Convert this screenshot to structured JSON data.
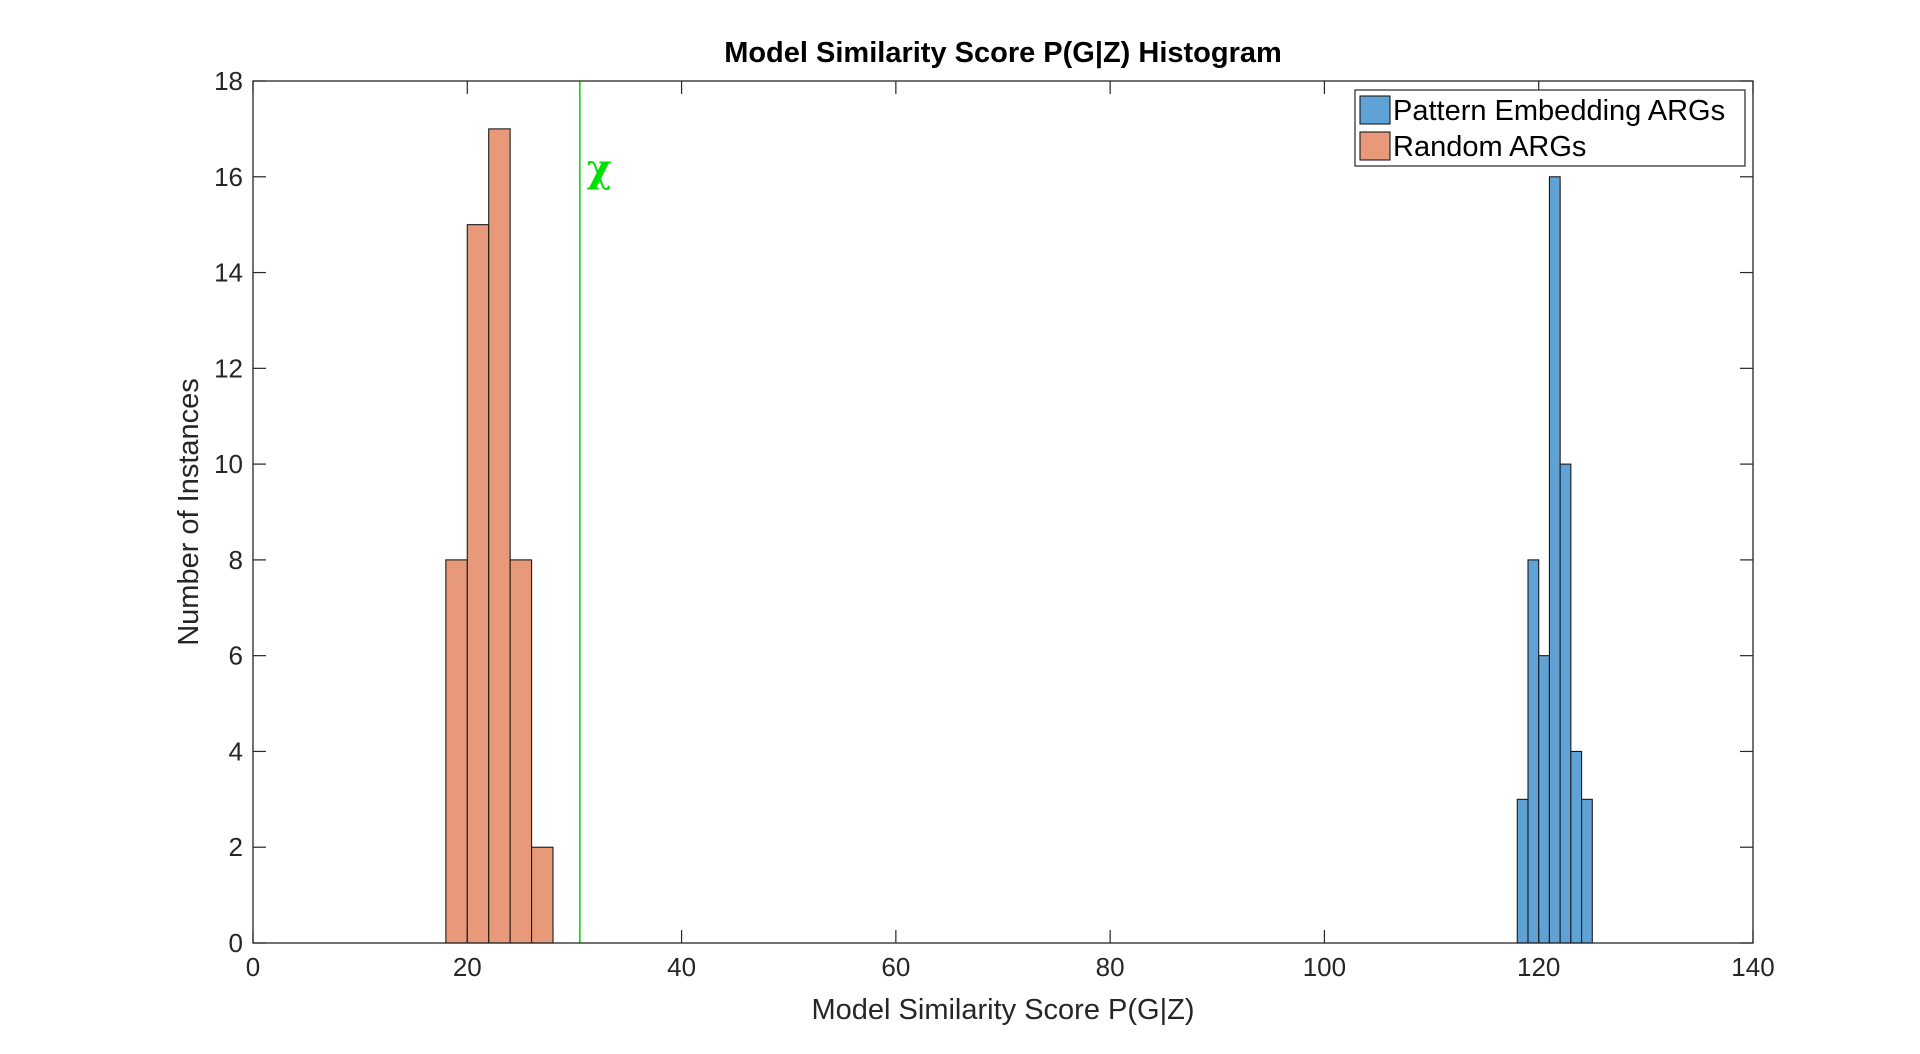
{
  "chart_data": {
    "type": "bar",
    "title": "Model Similarity Score P(G|Z) Histogram",
    "xlabel": "Model Similarity Score P(G|Z)",
    "ylabel": "Number of Instances",
    "xlim": [
      0,
      140
    ],
    "ylim": [
      0,
      18
    ],
    "xticks": [
      0,
      20,
      40,
      60,
      80,
      100,
      120,
      140
    ],
    "yticks": [
      0,
      2,
      4,
      6,
      8,
      10,
      12,
      14,
      16,
      18
    ],
    "grid": false,
    "legend_position": "top-right",
    "series": [
      {
        "name": "Pattern Embedding ARGs",
        "color": "#5fa2d6",
        "bins": [
          {
            "x0": 118.0,
            "x1": 119.0,
            "count": 3
          },
          {
            "x0": 119.0,
            "x1": 120.0,
            "count": 8
          },
          {
            "x0": 120.0,
            "x1": 121.0,
            "count": 6
          },
          {
            "x0": 121.0,
            "x1": 122.0,
            "count": 16
          },
          {
            "x0": 122.0,
            "x1": 123.0,
            "count": 10
          },
          {
            "x0": 123.0,
            "x1": 124.0,
            "count": 4
          },
          {
            "x0": 124.0,
            "x1": 125.0,
            "count": 3
          }
        ]
      },
      {
        "name": "Random ARGs",
        "color": "#e8997a",
        "bins": [
          {
            "x0": 18,
            "x1": 20,
            "count": 8
          },
          {
            "x0": 20,
            "x1": 22,
            "count": 15
          },
          {
            "x0": 22,
            "x1": 24,
            "count": 17
          },
          {
            "x0": 24,
            "x1": 26,
            "count": 8
          },
          {
            "x0": 26,
            "x1": 28,
            "count": 2
          }
        ]
      }
    ],
    "annotations": [
      {
        "type": "vertical-line",
        "x": 30.5,
        "color": "#00e000"
      },
      {
        "type": "text",
        "text": "χ",
        "x": 32.3,
        "y": 16.1,
        "color": "#00e000"
      }
    ]
  }
}
